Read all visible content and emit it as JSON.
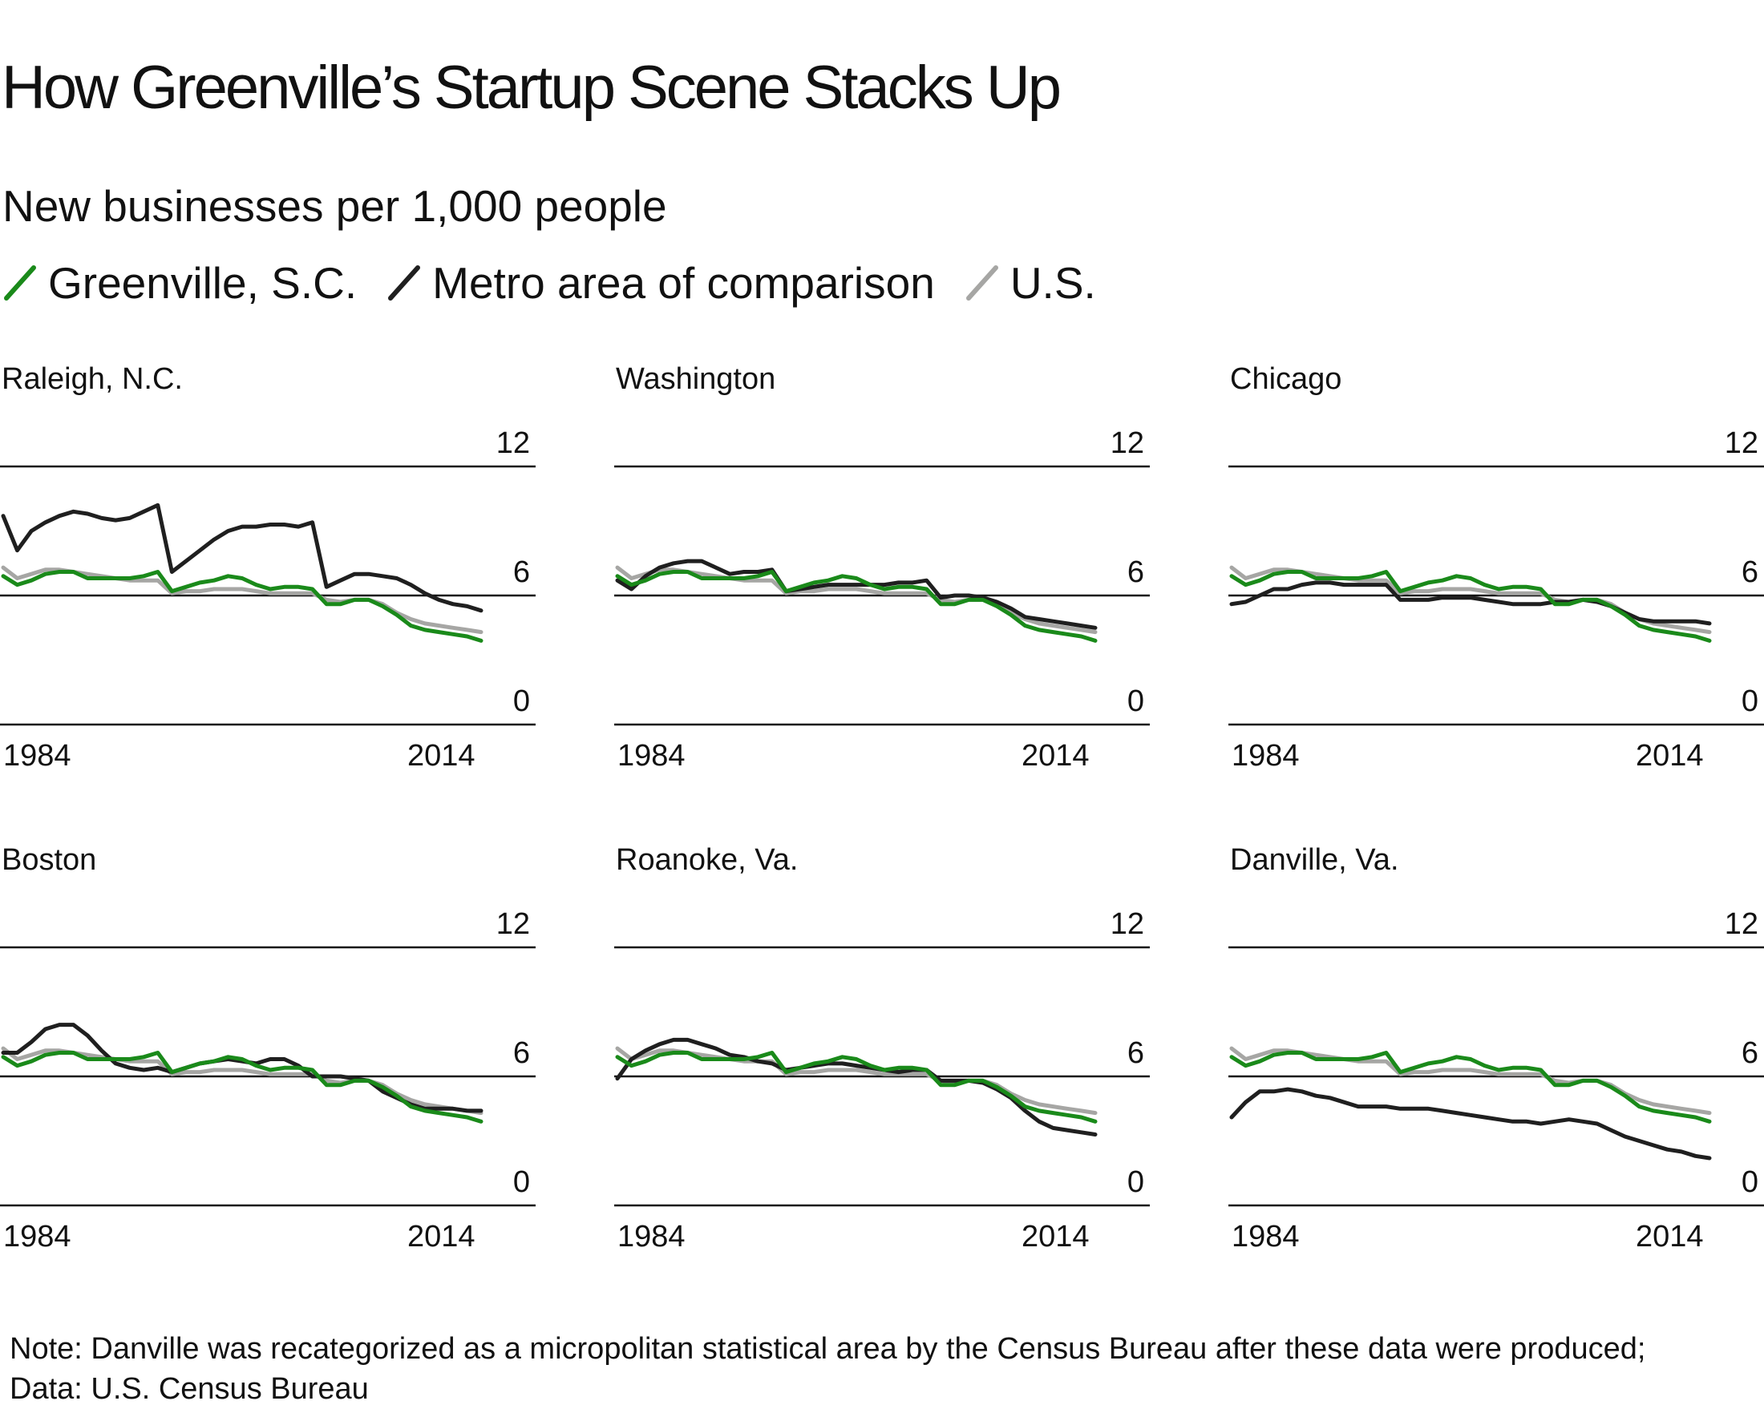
{
  "title": "How Greenville’s Startup Scene Stacks Up",
  "subtitle": "New businesses per 1,000 people",
  "legend": [
    {
      "label": "Greenville, S.C.",
      "color": "#1a8a1a",
      "key": "greenville"
    },
    {
      "label": "Metro area of comparison",
      "color": "#1f1f1f",
      "key": "metro"
    },
    {
      "label": "U.S.",
      "color": "#a6a6a4",
      "key": "us"
    }
  ],
  "note": "Note: Danville was recategorized as a micropolitan statistical area by the Census Bureau after these data were produced; Data: U.S. Census Bureau",
  "chart_data": [
    {
      "type": "line",
      "title": "Raleigh, N.C.",
      "x": [
        1980,
        1981,
        1982,
        1983,
        1984,
        1985,
        1986,
        1987,
        1988,
        1989,
        1990,
        1991,
        1992,
        1993,
        1994,
        1995,
        1996,
        1997,
        1998,
        1999,
        2000,
        2001,
        2002,
        2003,
        2004,
        2005,
        2006,
        2007,
        2008,
        2009,
        2010,
        2011,
        2012,
        2013,
        2014
      ],
      "ylim": [
        0,
        12
      ],
      "yticks": [
        0,
        6,
        12
      ],
      "xtick_labels": [
        "1984",
        "2014"
      ],
      "series": [
        {
          "name": "Greenville, S.C.",
          "values": [
            6.9,
            6.5,
            6.7,
            7.0,
            7.1,
            7.1,
            6.8,
            6.8,
            6.8,
            6.8,
            6.9,
            7.1,
            6.2,
            6.4,
            6.6,
            6.7,
            6.9,
            6.8,
            6.5,
            6.3,
            6.4,
            6.4,
            6.3,
            5.6,
            5.6,
            5.8,
            5.8,
            5.5,
            5.1,
            4.6,
            4.4,
            4.3,
            4.2,
            4.1,
            3.9
          ]
        },
        {
          "name": "Metro area of comparison",
          "values": [
            9.7,
            8.1,
            9.0,
            9.4,
            9.7,
            9.9,
            9.8,
            9.6,
            9.5,
            9.6,
            9.9,
            10.2,
            7.1,
            7.6,
            8.1,
            8.6,
            9.0,
            9.2,
            9.2,
            9.3,
            9.3,
            9.2,
            9.4,
            6.4,
            6.7,
            7.0,
            7.0,
            6.9,
            6.8,
            6.5,
            6.1,
            5.8,
            5.6,
            5.5,
            5.3
          ]
        },
        {
          "name": "U.S.",
          "values": [
            7.3,
            6.8,
            7.0,
            7.2,
            7.2,
            7.1,
            7.0,
            6.9,
            6.8,
            6.7,
            6.7,
            6.7,
            6.1,
            6.2,
            6.2,
            6.3,
            6.3,
            6.3,
            6.2,
            6.1,
            6.1,
            6.1,
            6.1,
            5.8,
            5.7,
            5.8,
            5.8,
            5.6,
            5.2,
            4.9,
            4.7,
            4.6,
            4.5,
            4.4,
            4.3
          ]
        }
      ]
    },
    {
      "type": "line",
      "title": "Washington",
      "x": [
        1980,
        1981,
        1982,
        1983,
        1984,
        1985,
        1986,
        1987,
        1988,
        1989,
        1990,
        1991,
        1992,
        1993,
        1994,
        1995,
        1996,
        1997,
        1998,
        1999,
        2000,
        2001,
        2002,
        2003,
        2004,
        2005,
        2006,
        2007,
        2008,
        2009,
        2010,
        2011,
        2012,
        2013,
        2014
      ],
      "ylim": [
        0,
        12
      ],
      "yticks": [
        0,
        6,
        12
      ],
      "xtick_labels": [
        "1984",
        "2014"
      ],
      "series": [
        {
          "name": "Greenville, S.C.",
          "values": [
            6.9,
            6.5,
            6.7,
            7.0,
            7.1,
            7.1,
            6.8,
            6.8,
            6.8,
            6.8,
            6.9,
            7.1,
            6.2,
            6.4,
            6.6,
            6.7,
            6.9,
            6.8,
            6.5,
            6.3,
            6.4,
            6.4,
            6.3,
            5.6,
            5.6,
            5.8,
            5.8,
            5.5,
            5.1,
            4.6,
            4.4,
            4.3,
            4.2,
            4.1,
            3.9
          ]
        },
        {
          "name": "Metro area of comparison",
          "values": [
            6.7,
            6.3,
            6.9,
            7.3,
            7.5,
            7.6,
            7.6,
            7.3,
            7.0,
            7.1,
            7.1,
            7.2,
            6.2,
            6.3,
            6.4,
            6.5,
            6.5,
            6.5,
            6.5,
            6.5,
            6.6,
            6.6,
            6.7,
            5.9,
            6.0,
            6.0,
            5.9,
            5.7,
            5.4,
            5.0,
            4.9,
            4.8,
            4.7,
            4.6,
            4.5
          ]
        },
        {
          "name": "U.S.",
          "values": [
            7.3,
            6.8,
            7.0,
            7.2,
            7.2,
            7.1,
            7.0,
            6.9,
            6.8,
            6.7,
            6.7,
            6.7,
            6.1,
            6.2,
            6.2,
            6.3,
            6.3,
            6.3,
            6.2,
            6.1,
            6.1,
            6.1,
            6.1,
            5.8,
            5.7,
            5.8,
            5.8,
            5.6,
            5.2,
            4.9,
            4.7,
            4.6,
            4.5,
            4.4,
            4.3
          ]
        }
      ]
    },
    {
      "type": "line",
      "title": "Chicago",
      "x": [
        1980,
        1981,
        1982,
        1983,
        1984,
        1985,
        1986,
        1987,
        1988,
        1989,
        1990,
        1991,
        1992,
        1993,
        1994,
        1995,
        1996,
        1997,
        1998,
        1999,
        2000,
        2001,
        2002,
        2003,
        2004,
        2005,
        2006,
        2007,
        2008,
        2009,
        2010,
        2011,
        2012,
        2013,
        2014
      ],
      "ylim": [
        0,
        12
      ],
      "yticks": [
        0,
        6,
        12
      ],
      "xtick_labels": [
        "1984",
        "2014"
      ],
      "series": [
        {
          "name": "Greenville, S.C.",
          "values": [
            6.9,
            6.5,
            6.7,
            7.0,
            7.1,
            7.1,
            6.8,
            6.8,
            6.8,
            6.8,
            6.9,
            7.1,
            6.2,
            6.4,
            6.6,
            6.7,
            6.9,
            6.8,
            6.5,
            6.3,
            6.4,
            6.4,
            6.3,
            5.6,
            5.6,
            5.8,
            5.8,
            5.5,
            5.1,
            4.6,
            4.4,
            4.3,
            4.2,
            4.1,
            3.9
          ]
        },
        {
          "name": "Metro area of comparison",
          "values": [
            5.6,
            5.7,
            6.0,
            6.3,
            6.3,
            6.5,
            6.6,
            6.6,
            6.5,
            6.5,
            6.5,
            6.5,
            5.8,
            5.8,
            5.8,
            5.9,
            5.9,
            5.9,
            5.8,
            5.7,
            5.6,
            5.6,
            5.6,
            5.7,
            5.7,
            5.8,
            5.7,
            5.5,
            5.2,
            4.9,
            4.8,
            4.8,
            4.8,
            4.8,
            4.7
          ]
        },
        {
          "name": "U.S.",
          "values": [
            7.3,
            6.8,
            7.0,
            7.2,
            7.2,
            7.1,
            7.0,
            6.9,
            6.8,
            6.7,
            6.7,
            6.7,
            6.1,
            6.2,
            6.2,
            6.3,
            6.3,
            6.3,
            6.2,
            6.1,
            6.1,
            6.1,
            6.1,
            5.8,
            5.7,
            5.8,
            5.8,
            5.6,
            5.2,
            4.9,
            4.7,
            4.6,
            4.5,
            4.4,
            4.3
          ]
        }
      ]
    },
    {
      "type": "line",
      "title": "Boston",
      "x": [
        1980,
        1981,
        1982,
        1983,
        1984,
        1985,
        1986,
        1987,
        1988,
        1989,
        1990,
        1991,
        1992,
        1993,
        1994,
        1995,
        1996,
        1997,
        1998,
        1999,
        2000,
        2001,
        2002,
        2003,
        2004,
        2005,
        2006,
        2007,
        2008,
        2009,
        2010,
        2011,
        2012,
        2013,
        2014
      ],
      "ylim": [
        0,
        12
      ],
      "yticks": [
        0,
        6,
        12
      ],
      "xtick_labels": [
        "1984",
        "2014"
      ],
      "series": [
        {
          "name": "Greenville, S.C.",
          "values": [
            6.9,
            6.5,
            6.7,
            7.0,
            7.1,
            7.1,
            6.8,
            6.8,
            6.8,
            6.8,
            6.9,
            7.1,
            6.2,
            6.4,
            6.6,
            6.7,
            6.9,
            6.8,
            6.5,
            6.3,
            6.4,
            6.4,
            6.3,
            5.6,
            5.6,
            5.8,
            5.8,
            5.5,
            5.1,
            4.6,
            4.4,
            4.3,
            4.2,
            4.1,
            3.9
          ]
        },
        {
          "name": "Metro area of comparison",
          "values": [
            7.1,
            7.1,
            7.6,
            8.2,
            8.4,
            8.4,
            7.9,
            7.2,
            6.6,
            6.4,
            6.3,
            6.4,
            6.2,
            6.4,
            6.6,
            6.7,
            6.8,
            6.7,
            6.6,
            6.8,
            6.8,
            6.5,
            6.0,
            6.0,
            6.0,
            5.9,
            5.8,
            5.3,
            5.0,
            4.7,
            4.5,
            4.5,
            4.5,
            4.4,
            4.4
          ]
        },
        {
          "name": "U.S.",
          "values": [
            7.3,
            6.8,
            7.0,
            7.2,
            7.2,
            7.1,
            7.0,
            6.9,
            6.8,
            6.7,
            6.7,
            6.7,
            6.1,
            6.2,
            6.2,
            6.3,
            6.3,
            6.3,
            6.2,
            6.1,
            6.1,
            6.1,
            6.1,
            5.8,
            5.7,
            5.8,
            5.8,
            5.6,
            5.2,
            4.9,
            4.7,
            4.6,
            4.5,
            4.4,
            4.3
          ]
        }
      ]
    },
    {
      "type": "line",
      "title": "Roanoke, Va.",
      "x": [
        1980,
        1981,
        1982,
        1983,
        1984,
        1985,
        1986,
        1987,
        1988,
        1989,
        1990,
        1991,
        1992,
        1993,
        1994,
        1995,
        1996,
        1997,
        1998,
        1999,
        2000,
        2001,
        2002,
        2003,
        2004,
        2005,
        2006,
        2007,
        2008,
        2009,
        2010,
        2011,
        2012,
        2013,
        2014
      ],
      "ylim": [
        0,
        12
      ],
      "yticks": [
        0,
        6,
        12
      ],
      "xtick_labels": [
        "1984",
        "2014"
      ],
      "series": [
        {
          "name": "Greenville, S.C.",
          "values": [
            6.9,
            6.5,
            6.7,
            7.0,
            7.1,
            7.1,
            6.8,
            6.8,
            6.8,
            6.8,
            6.9,
            7.1,
            6.2,
            6.4,
            6.6,
            6.7,
            6.9,
            6.8,
            6.5,
            6.3,
            6.4,
            6.4,
            6.3,
            5.6,
            5.6,
            5.8,
            5.8,
            5.5,
            5.1,
            4.6,
            4.4,
            4.3,
            4.2,
            4.1,
            3.9
          ]
        },
        {
          "name": "Metro area of comparison",
          "values": [
            5.9,
            6.8,
            7.2,
            7.5,
            7.7,
            7.7,
            7.5,
            7.3,
            7.0,
            6.9,
            6.7,
            6.6,
            6.3,
            6.4,
            6.5,
            6.6,
            6.6,
            6.5,
            6.4,
            6.3,
            6.2,
            6.3,
            6.3,
            5.8,
            5.8,
            5.8,
            5.7,
            5.4,
            5.0,
            4.4,
            3.9,
            3.6,
            3.5,
            3.4,
            3.3
          ]
        },
        {
          "name": "U.S.",
          "values": [
            7.3,
            6.8,
            7.0,
            7.2,
            7.2,
            7.1,
            7.0,
            6.9,
            6.8,
            6.7,
            6.7,
            6.7,
            6.1,
            6.2,
            6.2,
            6.3,
            6.3,
            6.3,
            6.2,
            6.1,
            6.1,
            6.1,
            6.1,
            5.8,
            5.7,
            5.8,
            5.8,
            5.6,
            5.2,
            4.9,
            4.7,
            4.6,
            4.5,
            4.4,
            4.3
          ]
        }
      ]
    },
    {
      "type": "line",
      "title": "Danville, Va.",
      "x": [
        1980,
        1981,
        1982,
        1983,
        1984,
        1985,
        1986,
        1987,
        1988,
        1989,
        1990,
        1991,
        1992,
        1993,
        1994,
        1995,
        1996,
        1997,
        1998,
        1999,
        2000,
        2001,
        2002,
        2003,
        2004,
        2005,
        2006,
        2007,
        2008,
        2009,
        2010,
        2011,
        2012,
        2013,
        2014
      ],
      "ylim": [
        0,
        12
      ],
      "yticks": [
        0,
        6,
        12
      ],
      "xtick_labels": [
        "1984",
        "2014"
      ],
      "series": [
        {
          "name": "Greenville, S.C.",
          "values": [
            6.9,
            6.5,
            6.7,
            7.0,
            7.1,
            7.1,
            6.8,
            6.8,
            6.8,
            6.8,
            6.9,
            7.1,
            6.2,
            6.4,
            6.6,
            6.7,
            6.9,
            6.8,
            6.5,
            6.3,
            6.4,
            6.4,
            6.3,
            5.6,
            5.6,
            5.8,
            5.8,
            5.5,
            5.1,
            4.6,
            4.4,
            4.3,
            4.2,
            4.1,
            3.9
          ]
        },
        {
          "name": "Metro area of comparison",
          "values": [
            4.1,
            4.8,
            5.3,
            5.3,
            5.4,
            5.3,
            5.1,
            5.0,
            4.8,
            4.6,
            4.6,
            4.6,
            4.5,
            4.5,
            4.5,
            4.4,
            4.3,
            4.2,
            4.1,
            4.0,
            3.9,
            3.9,
            3.8,
            3.9,
            4.0,
            3.9,
            3.8,
            3.5,
            3.2,
            3.0,
            2.8,
            2.6,
            2.5,
            2.3,
            2.2
          ]
        },
        {
          "name": "U.S.",
          "values": [
            7.3,
            6.8,
            7.0,
            7.2,
            7.2,
            7.1,
            7.0,
            6.9,
            6.8,
            6.7,
            6.7,
            6.7,
            6.1,
            6.2,
            6.2,
            6.3,
            6.3,
            6.3,
            6.2,
            6.1,
            6.1,
            6.1,
            6.1,
            5.8,
            5.7,
            5.8,
            5.8,
            5.6,
            5.2,
            4.9,
            4.7,
            4.6,
            4.5,
            4.4,
            4.3
          ]
        }
      ]
    }
  ]
}
